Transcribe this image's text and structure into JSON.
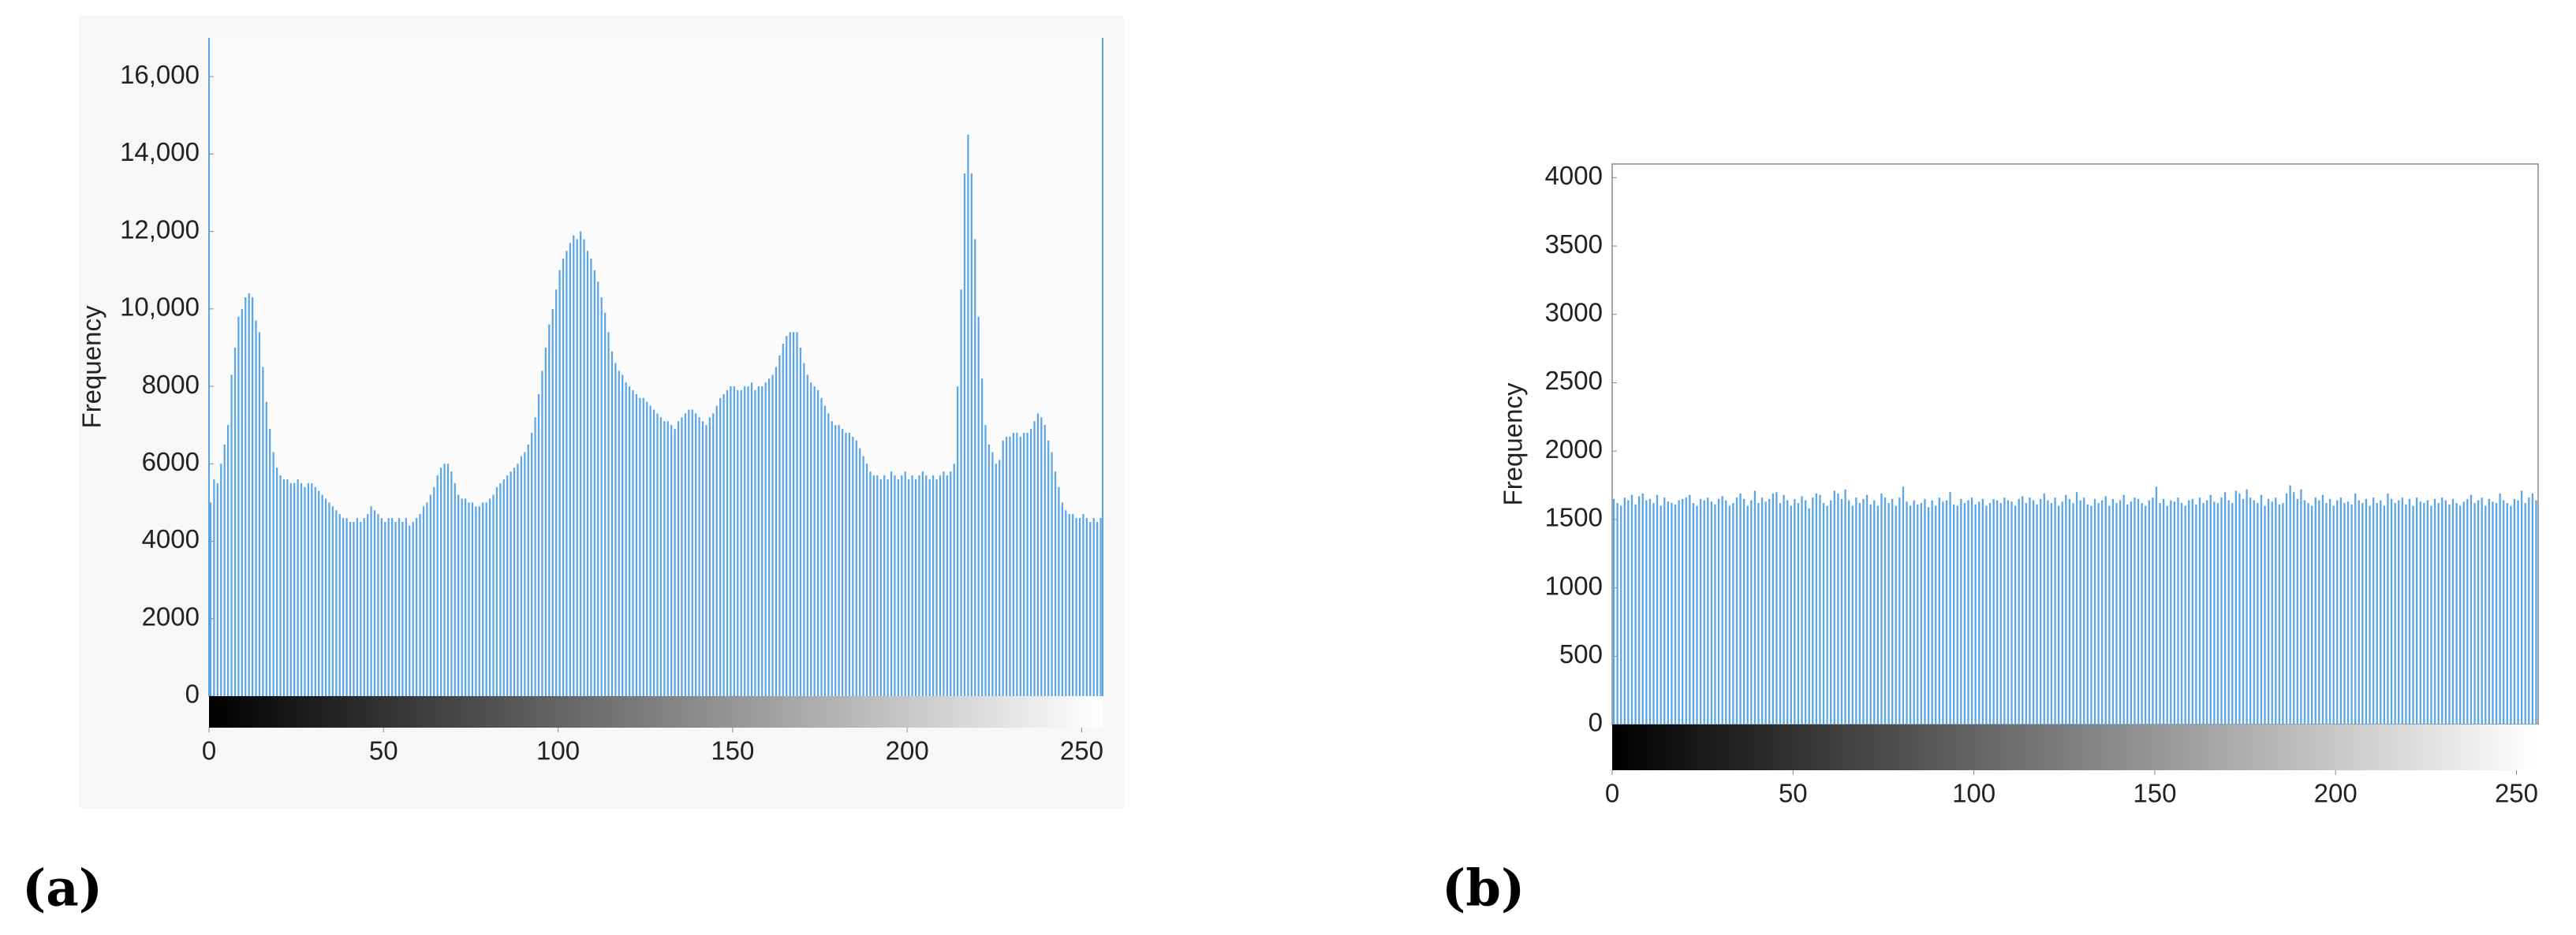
{
  "chart_data": [
    {
      "type": "bar",
      "panel_label": "(a)",
      "ylabel": "Frequency",
      "color": "#5aa5e6",
      "grid": false,
      "xlim": [
        0,
        256
      ],
      "xticks": [
        0,
        50,
        100,
        150,
        200,
        250
      ],
      "ylim": [
        0,
        17000
      ],
      "yticks": [
        0,
        2000,
        4000,
        6000,
        8000,
        {
          "value": 10000,
          "label": "10,000"
        },
        {
          "value": 12000,
          "label": "12,000"
        },
        {
          "value": 14000,
          "label": "14,000"
        },
        {
          "value": 16000,
          "label": "16,000"
        }
      ],
      "x": [
        0,
        1,
        2,
        3,
        4,
        5,
        6,
        7,
        8,
        9,
        10,
        11,
        12,
        13,
        14,
        15,
        16,
        17,
        18,
        19,
        20,
        21,
        22,
        23,
        24,
        25,
        26,
        27,
        28,
        29,
        30,
        31,
        32,
        33,
        34,
        35,
        36,
        37,
        38,
        39,
        40,
        41,
        42,
        43,
        44,
        45,
        46,
        47,
        48,
        49,
        50,
        51,
        52,
        53,
        54,
        55,
        56,
        57,
        58,
        59,
        60,
        61,
        62,
        63,
        64,
        65,
        66,
        67,
        68,
        69,
        70,
        71,
        72,
        73,
        74,
        75,
        76,
        77,
        78,
        79,
        80,
        81,
        82,
        83,
        84,
        85,
        86,
        87,
        88,
        89,
        90,
        91,
        92,
        93,
        94,
        95,
        96,
        97,
        98,
        99,
        100,
        101,
        102,
        103,
        104,
        105,
        106,
        107,
        108,
        109,
        110,
        111,
        112,
        113,
        114,
        115,
        116,
        117,
        118,
        119,
        120,
        121,
        122,
        123,
        124,
        125,
        126,
        127,
        128,
        129,
        130,
        131,
        132,
        133,
        134,
        135,
        136,
        137,
        138,
        139,
        140,
        141,
        142,
        143,
        144,
        145,
        146,
        147,
        148,
        149,
        150,
        151,
        152,
        153,
        154,
        155,
        156,
        157,
        158,
        159,
        160,
        161,
        162,
        163,
        164,
        165,
        166,
        167,
        168,
        169,
        170,
        171,
        172,
        173,
        174,
        175,
        176,
        177,
        178,
        179,
        180,
        181,
        182,
        183,
        184,
        185,
        186,
        187,
        188,
        189,
        190,
        191,
        192,
        193,
        194,
        195,
        196,
        197,
        198,
        199,
        200,
        201,
        202,
        203,
        204,
        205,
        206,
        207,
        208,
        209,
        210,
        211,
        212,
        213,
        214,
        215,
        216,
        217,
        218,
        219,
        220,
        221,
        222,
        223,
        224,
        225,
        226,
        227,
        228,
        229,
        230,
        231,
        232,
        233,
        234,
        235,
        236,
        237,
        238,
        239,
        240,
        241,
        242,
        243,
        244,
        245,
        246,
        247,
        248,
        249,
        250,
        251,
        252,
        253,
        254,
        255
      ],
      "values": [
        5000,
        5600,
        5500,
        6000,
        6500,
        7000,
        8300,
        9000,
        9800,
        10000,
        10300,
        10400,
        10300,
        9700,
        9400,
        8500,
        7600,
        6900,
        6300,
        5900,
        5700,
        5600,
        5600,
        5500,
        5500,
        5600,
        5500,
        5400,
        5500,
        5500,
        5400,
        5300,
        5200,
        5100,
        5000,
        4900,
        4800,
        4700,
        4600,
        4600,
        4500,
        4500,
        4600,
        4500,
        4600,
        4700,
        4900,
        4800,
        4700,
        4600,
        4500,
        4600,
        4600,
        4500,
        4600,
        4500,
        4600,
        4400,
        4500,
        4600,
        4700,
        4900,
        5000,
        5200,
        5400,
        5700,
        5900,
        6000,
        6000,
        5800,
        5500,
        5200,
        5100,
        5100,
        5000,
        5000,
        4900,
        4900,
        5000,
        5000,
        5100,
        5200,
        5400,
        5500,
        5600,
        5700,
        5800,
        5900,
        6000,
        6200,
        6300,
        6500,
        6800,
        7200,
        7800,
        8400,
        9000,
        9600,
        10000,
        10500,
        11000,
        11300,
        11500,
        11700,
        11900,
        11800,
        12000,
        11800,
        11500,
        11300,
        11000,
        10700,
        10300,
        9900,
        9400,
        8900,
        8600,
        8400,
        8300,
        8100,
        8000,
        7900,
        7800,
        7700,
        7700,
        7600,
        7500,
        7400,
        7300,
        7200,
        7100,
        7100,
        7000,
        6900,
        7100,
        7200,
        7300,
        7400,
        7400,
        7300,
        7200,
        7100,
        7000,
        7200,
        7300,
        7500,
        7700,
        7800,
        7900,
        8000,
        8000,
        7900,
        7900,
        8000,
        8000,
        8100,
        7900,
        8000,
        8000,
        8100,
        8200,
        8300,
        8500,
        8800,
        9100,
        9300,
        9400,
        9400,
        9400,
        9000,
        8600,
        8300,
        8100,
        8000,
        7900,
        7700,
        7500,
        7300,
        7100,
        7000,
        7000,
        6900,
        6800,
        6800,
        6700,
        6600,
        6400,
        6200,
        6000,
        5800,
        5700,
        5700,
        5600,
        5700,
        5600,
        5800,
        5700,
        5600,
        5700,
        5800,
        5600,
        5700,
        5600,
        5700,
        5800,
        5700,
        5600,
        5700,
        5600,
        5700,
        5800,
        5700,
        5800,
        6000,
        8000,
        10500,
        13500,
        14500,
        13500,
        11800,
        9800,
        8200,
        7000,
        6500,
        6300,
        6000,
        6100,
        6600,
        6700,
        6700,
        6800,
        6800,
        6700,
        6800,
        6800,
        6900,
        7100,
        7300,
        7200,
        7000,
        6600,
        6300,
        5800,
        5400,
        5000,
        4800,
        4700,
        4700,
        4600,
        4600,
        4700,
        4600,
        4500,
        4600,
        4500,
        4600
      ]
    },
    {
      "type": "bar",
      "panel_label": "(b)",
      "ylabel": "Frequency",
      "color": "#5aa5e6",
      "grid": false,
      "xlim": [
        0,
        256
      ],
      "xticks": [
        0,
        50,
        100,
        150,
        200,
        250
      ],
      "ylim": [
        0,
        4100
      ],
      "yticks": [
        0,
        500,
        1000,
        1500,
        2000,
        2500,
        3000,
        3500,
        4000
      ],
      "x": [
        0,
        1,
        2,
        3,
        4,
        5,
        6,
        7,
        8,
        9,
        10,
        11,
        12,
        13,
        14,
        15,
        16,
        17,
        18,
        19,
        20,
        21,
        22,
        23,
        24,
        25,
        26,
        27,
        28,
        29,
        30,
        31,
        32,
        33,
        34,
        35,
        36,
        37,
        38,
        39,
        40,
        41,
        42,
        43,
        44,
        45,
        46,
        47,
        48,
        49,
        50,
        51,
        52,
        53,
        54,
        55,
        56,
        57,
        58,
        59,
        60,
        61,
        62,
        63,
        64,
        65,
        66,
        67,
        68,
        69,
        70,
        71,
        72,
        73,
        74,
        75,
        76,
        77,
        78,
        79,
        80,
        81,
        82,
        83,
        84,
        85,
        86,
        87,
        88,
        89,
        90,
        91,
        92,
        93,
        94,
        95,
        96,
        97,
        98,
        99,
        100,
        101,
        102,
        103,
        104,
        105,
        106,
        107,
        108,
        109,
        110,
        111,
        112,
        113,
        114,
        115,
        116,
        117,
        118,
        119,
        120,
        121,
        122,
        123,
        124,
        125,
        126,
        127,
        128,
        129,
        130,
        131,
        132,
        133,
        134,
        135,
        136,
        137,
        138,
        139,
        140,
        141,
        142,
        143,
        144,
        145,
        146,
        147,
        148,
        149,
        150,
        151,
        152,
        153,
        154,
        155,
        156,
        157,
        158,
        159,
        160,
        161,
        162,
        163,
        164,
        165,
        166,
        167,
        168,
        169,
        170,
        171,
        172,
        173,
        174,
        175,
        176,
        177,
        178,
        179,
        180,
        181,
        182,
        183,
        184,
        185,
        186,
        187,
        188,
        189,
        190,
        191,
        192,
        193,
        194,
        195,
        196,
        197,
        198,
        199,
        200,
        201,
        202,
        203,
        204,
        205,
        206,
        207,
        208,
        209,
        210,
        211,
        212,
        213,
        214,
        215,
        216,
        217,
        218,
        219,
        220,
        221,
        222,
        223,
        224,
        225,
        226,
        227,
        228,
        229,
        230,
        231,
        232,
        233,
        234,
        235,
        236,
        237,
        238,
        239,
        240,
        241,
        242,
        243,
        244,
        245,
        246,
        247,
        248,
        249,
        250,
        251,
        252,
        253,
        254,
        255
      ],
      "values": [
        1650,
        1620,
        1600,
        1660,
        1640,
        1680,
        1610,
        1670,
        1690,
        1640,
        1650,
        1620,
        1680,
        1600,
        1660,
        1630,
        1620,
        1610,
        1640,
        1650,
        1660,
        1680,
        1620,
        1600,
        1650,
        1640,
        1660,
        1630,
        1610,
        1650,
        1670,
        1640,
        1600,
        1620,
        1660,
        1690,
        1650,
        1600,
        1640,
        1710,
        1620,
        1660,
        1630,
        1650,
        1690,
        1700,
        1620,
        1680,
        1640,
        1600,
        1650,
        1620,
        1670,
        1640,
        1580,
        1660,
        1690,
        1680,
        1620,
        1600,
        1640,
        1710,
        1690,
        1650,
        1720,
        1640,
        1600,
        1660,
        1620,
        1650,
        1680,
        1610,
        1640,
        1600,
        1690,
        1660,
        1620,
        1650,
        1600,
        1660,
        1740,
        1630,
        1600,
        1640,
        1610,
        1620,
        1650,
        1590,
        1640,
        1600,
        1660,
        1630,
        1640,
        1700,
        1610,
        1600,
        1650,
        1620,
        1640,
        1660,
        1610,
        1630,
        1650,
        1600,
        1620,
        1650,
        1640,
        1620,
        1660,
        1640,
        1630,
        1600,
        1650,
        1670,
        1620,
        1660,
        1640,
        1610,
        1650,
        1690,
        1640,
        1620,
        1660,
        1600,
        1630,
        1680,
        1650,
        1620,
        1700,
        1640,
        1660,
        1610,
        1600,
        1650,
        1620,
        1640,
        1670,
        1600,
        1650,
        1620,
        1640,
        1680,
        1610,
        1630,
        1660,
        1650,
        1620,
        1600,
        1640,
        1660,
        1740,
        1620,
        1650,
        1600,
        1640,
        1630,
        1660,
        1620,
        1600,
        1640,
        1650,
        1610,
        1660,
        1620,
        1640,
        1680,
        1630,
        1620,
        1660,
        1700,
        1640,
        1620,
        1710,
        1690,
        1650,
        1720,
        1660,
        1640,
        1620,
        1680,
        1600,
        1650,
        1630,
        1660,
        1610,
        1620,
        1690,
        1750,
        1700,
        1650,
        1720,
        1640,
        1620,
        1600,
        1660,
        1640,
        1680,
        1620,
        1650,
        1600,
        1640,
        1660,
        1620,
        1630,
        1610,
        1690,
        1640,
        1620,
        1650,
        1600,
        1660,
        1620,
        1640,
        1600,
        1690,
        1650,
        1620,
        1640,
        1660,
        1610,
        1650,
        1600,
        1660,
        1630,
        1620,
        1640,
        1600,
        1650,
        1620,
        1660,
        1640,
        1610,
        1650,
        1620,
        1600,
        1630,
        1650,
        1680,
        1620,
        1640,
        1660,
        1600,
        1650,
        1630,
        1620,
        1690,
        1640,
        1620,
        1600,
        1650,
        1640,
        1710,
        1620,
        1660,
        1690,
        1640
      ]
    }
  ]
}
